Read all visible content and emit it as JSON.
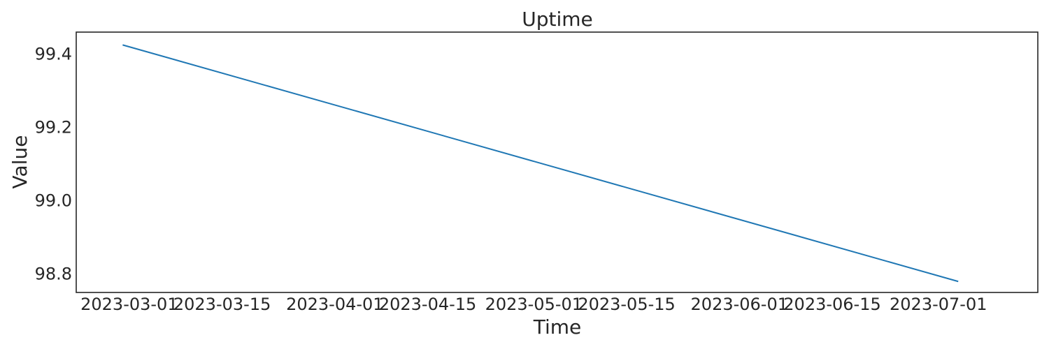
{
  "chart_data": {
    "type": "line",
    "title": "Uptime",
    "xlabel": "Time",
    "ylabel": "Value",
    "x_ticks": [
      "2023-03-01",
      "2023-03-15",
      "2023-04-01",
      "2023-04-15",
      "2023-05-01",
      "2023-05-15",
      "2023-06-01",
      "2023-06-15",
      "2023-07-01"
    ],
    "y_ticks": [
      "98.8",
      "99.0",
      "99.2",
      "99.4"
    ],
    "xlim": [
      "2023-02-21",
      "2023-07-16"
    ],
    "ylim": [
      98.75,
      99.46
    ],
    "grid": false,
    "series": [
      {
        "color": "#1f77b4",
        "x": [
          "2023-02-28",
          "2023-07-04"
        ],
        "y": [
          99.425,
          98.78
        ]
      }
    ]
  }
}
